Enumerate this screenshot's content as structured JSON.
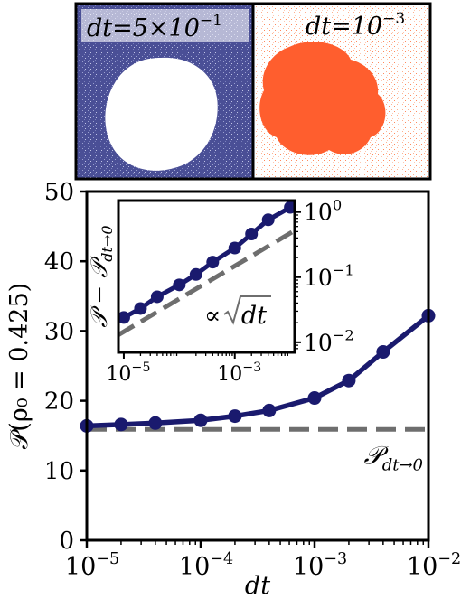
{
  "snapshots": [
    {
      "label": "dt=5×10",
      "label_exp": "−1",
      "background": "#4a4f96",
      "blob": "#ffffff"
    },
    {
      "label": "dt=10",
      "label_exp": "−3",
      "background": "#ffffff",
      "blob": "#ff5e2e"
    }
  ],
  "colors": {
    "series": "#1a1a6e",
    "reference": "#6e6e6e"
  },
  "chart_data": [
    {
      "type": "line",
      "xscale": "log",
      "xlim": [
        1e-05,
        0.01
      ],
      "ylim": [
        0,
        50
      ],
      "xlabel": "dt",
      "ylabel": "𝒫(ρ₀ = 0.425)",
      "xticks": [
        1e-05,
        0.0001,
        0.001,
        0.01
      ],
      "xtick_labels": [
        {
          "base": "10",
          "exp": "−5"
        },
        {
          "base": "10",
          "exp": "−4"
        },
        {
          "base": "10",
          "exp": "−3"
        },
        {
          "base": "10",
          "exp": "−2"
        }
      ],
      "yticks": [
        0,
        10,
        20,
        30,
        40,
        50
      ],
      "ytick_labels": [
        "0",
        "10",
        "20",
        "30",
        "40",
        "50"
      ],
      "series": [
        {
          "x": [
            1e-05,
            2e-05,
            4e-05,
            0.0001,
            0.0002,
            0.0004,
            0.001,
            0.002,
            0.004,
            0.01
          ],
          "y": [
            16.4,
            16.6,
            16.8,
            17.2,
            17.8,
            18.6,
            20.4,
            22.9,
            27.0,
            32.2
          ]
        }
      ],
      "reference": {
        "y": 15.9,
        "label": "𝒫",
        "label_sub": "dt→0"
      }
    },
    {
      "type": "line",
      "xscale": "log",
      "yscale": "log",
      "xlim": [
        8e-06,
        0.012
      ],
      "ylim": [
        0.007,
        1.5
      ],
      "ylabel": "𝒫 − 𝒫",
      "ylabel_sub": "dt→0",
      "xticks": [
        1e-05,
        0.001
      ],
      "xtick_labels": [
        {
          "base": "10",
          "exp": "−5"
        },
        {
          "base": "10",
          "exp": "−3"
        }
      ],
      "yticks": [
        0.01,
        0.1,
        1
      ],
      "ytick_labels": [
        {
          "base": "10",
          "exp": "−2"
        },
        {
          "base": "10",
          "exp": "−1"
        },
        {
          "base": "10",
          "exp": "0"
        }
      ],
      "series": [
        {
          "x": [
            1e-05,
            2e-05,
            4e-05,
            0.0001,
            0.0002,
            0.0004,
            0.001,
            0.002,
            0.004,
            0.01
          ],
          "y": [
            0.024,
            0.033,
            0.05,
            0.076,
            0.11,
            0.17,
            0.28,
            0.46,
            0.76,
            1.18
          ]
        }
      ],
      "reference": {
        "x": [
          8e-06,
          0.012
        ],
        "y": [
          0.013,
          0.52
        ],
        "label": "∝ ",
        "label_sqrt": "dt"
      }
    }
  ]
}
